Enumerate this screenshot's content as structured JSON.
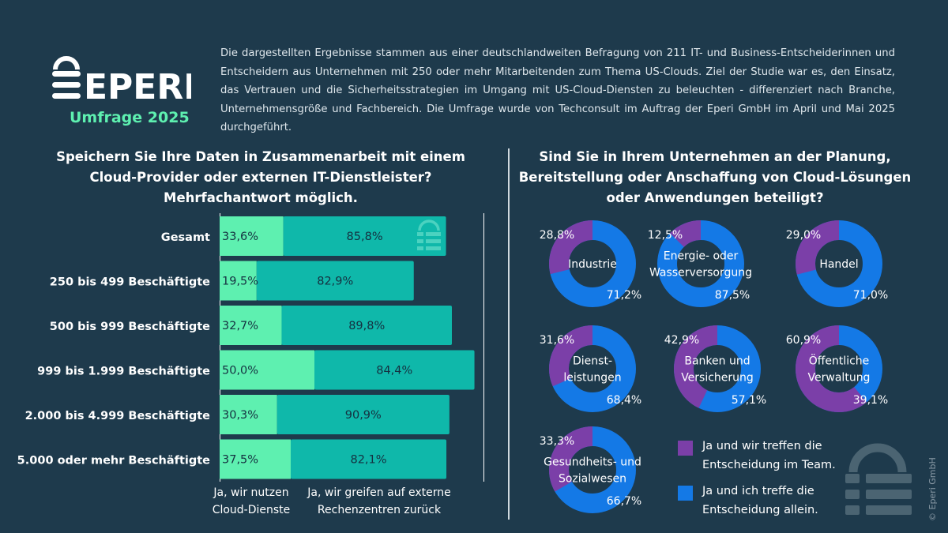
{
  "brand": {
    "name": "EPERI",
    "subtitle": "Umfrage 2025"
  },
  "intro": "Die dargestellten Ergebnisse stammen aus einer deutschlandweiten Befragung von 211 IT- und Business-Entscheiderinnen und Entscheidern aus Unternehmen mit 250 oder mehr Mitarbeitenden zum Thema US-Clouds. Ziel der Studie war es, den Einsatz, das Vertrauen und die Sicherheitsstrategien im Umgang mit US-Cloud-Diensten zu beleuchten - differenziert nach Branche, Unternehmensgröße und Fachbereich. Die Umfrage wurde von Techconsult im Auftrag der Eperi GmbH im April und Mai 2025 durchgeführt.",
  "copyright": "© Eperi GmbH",
  "colors": {
    "background": "#1e3a4c",
    "bar_a": "#5ef0b0",
    "bar_b": "#0fb8aa",
    "team": "#7b3fa8",
    "allein": "#1479e6"
  },
  "chart_data": [
    {
      "type": "bar",
      "orientation": "horizontal",
      "title": [
        "Speichern Sie Ihre Daten in Zusammenarbeit mit einem",
        "Cloud-Provider oder externen IT-Dienstleister?",
        "Mehrfachantwort möglich."
      ],
      "categories": [
        "Gesamt",
        "250 bis 499 Beschäftigte",
        "500 bis 999 Beschäftigte",
        "999 bis 1.999 Beschäftigte",
        "2.000 bis 4.999 Beschäftigte",
        "5.000 oder mehr Beschäftigte"
      ],
      "series": [
        {
          "name": "Ja, wir nutzen Cloud-Dienste",
          "name_lines": [
            "Ja, wir nutzen",
            "Cloud-Dienste"
          ],
          "values": [
            33.6,
            19.5,
            32.7,
            50.0,
            30.3,
            37.5
          ],
          "labels": [
            "33,6%",
            "19,5%",
            "32,7%",
            "50,0%",
            "30,3%",
            "37,5%"
          ]
        },
        {
          "name": "Ja, wir greifen auf externe Rechenzentren zurück",
          "name_lines": [
            "Ja, wir greifen auf externe",
            "Rechenzentren zurück"
          ],
          "values": [
            85.8,
            82.9,
            89.8,
            84.4,
            90.9,
            82.1
          ],
          "labels": [
            "85,8%",
            "82,9%",
            "89,8%",
            "84,4%",
            "90,9%",
            "82,1%"
          ]
        }
      ],
      "stacked": true,
      "grid": false
    },
    {
      "type": "pie",
      "variant": "donut",
      "title": [
        "Sind Sie in Ihrem Unternehmen an der Planung,",
        "Bereitstellung oder Anschaffung von Cloud-Lösungen",
        "oder Anwendungen beteiligt?"
      ],
      "legend": {
        "placement": "bottom-right",
        "entries": [
          {
            "name": "Ja und wir treffen die Entscheidung im Team.",
            "lines": [
              "Ja und wir treffen die",
              "Entscheidung im Team."
            ]
          },
          {
            "name": "Ja und ich treffe die Entscheidung allein.",
            "lines": [
              "Ja und ich treffe die",
              "Entscheidung allein."
            ]
          }
        ]
      },
      "donuts": [
        {
          "label": [
            "Industrie"
          ],
          "team": 28.8,
          "allein": 71.2,
          "team_label": "28,8%",
          "allein_label": "71,2%"
        },
        {
          "label": [
            "Energie- oder",
            "Wasserversorgung"
          ],
          "team": 12.5,
          "allein": 87.5,
          "team_label": "12,5%",
          "allein_label": "87,5%"
        },
        {
          "label": [
            "Handel"
          ],
          "team": 29.0,
          "allein": 71.0,
          "team_label": "29,0%",
          "allein_label": "71,0%"
        },
        {
          "label": [
            "Dienst-",
            "leistungen"
          ],
          "team": 31.6,
          "allein": 68.4,
          "team_label": "31,6%",
          "allein_label": "68,4%"
        },
        {
          "label": [
            "Banken und",
            "Versicherung"
          ],
          "team": 42.9,
          "allein": 57.1,
          "team_label": "42,9%",
          "allein_label": "57,1%"
        },
        {
          "label": [
            "Öffentliche",
            "Verwaltung"
          ],
          "team": 60.9,
          "allein": 39.1,
          "team_label": "60,9%",
          "allein_label": "39,1%"
        },
        {
          "label": [
            "Gesundheits- und",
            "Sozialwesen"
          ],
          "team": 33.3,
          "allein": 66.7,
          "team_label": "33,3%",
          "allein_label": "66,7%"
        }
      ]
    }
  ]
}
